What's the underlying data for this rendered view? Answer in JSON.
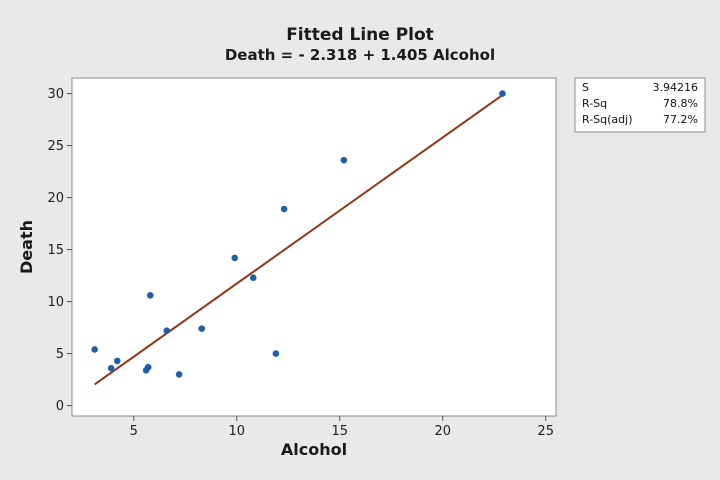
{
  "chart_data": {
    "type": "scatter",
    "title": "Fitted Line Plot",
    "subtitle": "Death = - 2.318 + 1.405 Alcohol",
    "xlabel": "Alcohol",
    "ylabel": "Death",
    "xlim": [
      2,
      25.5
    ],
    "ylim": [
      -1,
      31.5
    ],
    "xticks": [
      5,
      10,
      15,
      20,
      25
    ],
    "yticks": [
      0,
      5,
      10,
      15,
      20,
      25,
      30
    ],
    "grid": false,
    "points": [
      {
        "x": 3.1,
        "y": 5.4
      },
      {
        "x": 3.9,
        "y": 3.6
      },
      {
        "x": 4.2,
        "y": 4.3
      },
      {
        "x": 5.6,
        "y": 3.4
      },
      {
        "x": 5.7,
        "y": 3.7
      },
      {
        "x": 5.8,
        "y": 10.6
      },
      {
        "x": 6.6,
        "y": 7.2
      },
      {
        "x": 7.2,
        "y": 3.0
      },
      {
        "x": 8.3,
        "y": 7.4
      },
      {
        "x": 9.9,
        "y": 14.2
      },
      {
        "x": 10.8,
        "y": 12.3
      },
      {
        "x": 11.9,
        "y": 5.0
      },
      {
        "x": 12.3,
        "y": 18.9
      },
      {
        "x": 15.2,
        "y": 23.6
      },
      {
        "x": 22.9,
        "y": 30.0
      }
    ],
    "fit_line": {
      "intercept": -2.318,
      "slope": 1.405,
      "x_range": [
        3.1,
        22.9
      ]
    },
    "stats": [
      {
        "label": "S",
        "value": "3.94216"
      },
      {
        "label": "R-Sq",
        "value": "78.8%"
      },
      {
        "label": "R-Sq(adj)",
        "value": "77.2%"
      }
    ],
    "colors": {
      "point": "#1f5fa8",
      "line": "#9a3412",
      "frame": "#8c8c8c",
      "background": "#e9e9e9",
      "plot_background": "#ffffff"
    }
  }
}
